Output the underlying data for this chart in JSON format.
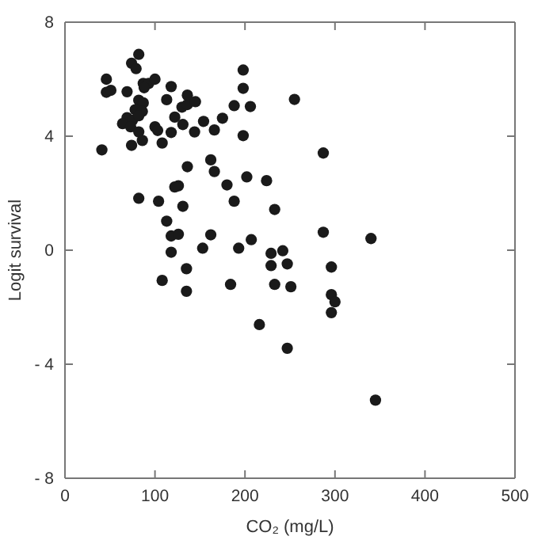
{
  "chart_data": {
    "type": "scatter",
    "xlabel": "CO₂ (mg/L)",
    "ylabel": "Logit survival",
    "xlim": [
      0,
      500
    ],
    "ylim": [
      -8,
      8
    ],
    "xticks": [
      0,
      100,
      200,
      300,
      400,
      500
    ],
    "yticks": [
      {
        "value": -8,
        "label": "- 8"
      },
      {
        "value": -4,
        "label": "- 4"
      },
      0,
      4,
      8
    ],
    "grid": false,
    "marker": "circle",
    "series": [
      {
        "color": "#1a1a1a",
        "x": [
          82,
          74,
          79,
          46,
          46,
          51,
          69,
          87,
          93,
          100,
          88,
          118,
          136,
          113,
          82,
          87,
          130,
          136,
          145,
          78,
          86,
          69,
          75,
          82,
          122,
          154,
          175,
          188,
          198,
          198,
          206,
          255,
          64,
          73,
          100,
          103,
          131,
          82,
          118,
          144,
          166,
          198,
          86,
          74,
          108,
          41,
          162,
          166,
          136,
          126,
          122,
          180,
          202,
          224,
          82,
          104,
          131,
          188,
          233,
          113,
          118,
          126,
          162,
          207,
          118,
          153,
          193,
          229,
          242,
          287,
          340,
          287,
          229,
          247,
          296,
          135,
          108,
          184,
          233,
          251,
          135,
          296,
          300,
          296,
          216,
          247,
          345
        ],
        "values": [
          6.87,
          6.56,
          6.37,
          6.0,
          5.54,
          5.61,
          5.56,
          5.85,
          5.85,
          6.0,
          5.7,
          5.74,
          5.44,
          5.28,
          5.26,
          5.17,
          5.02,
          5.11,
          5.21,
          4.93,
          4.87,
          4.65,
          4.56,
          4.72,
          4.67,
          4.52,
          4.63,
          5.07,
          6.32,
          5.68,
          5.04,
          5.29,
          4.44,
          4.33,
          4.33,
          4.2,
          4.41,
          4.15,
          4.13,
          4.15,
          4.22,
          4.02,
          3.85,
          3.68,
          3.76,
          3.52,
          3.17,
          2.76,
          2.93,
          2.26,
          2.22,
          2.29,
          2.57,
          2.44,
          1.82,
          1.72,
          1.54,
          1.72,
          1.43,
          1.02,
          0.5,
          0.56,
          0.54,
          0.37,
          -0.07,
          0.07,
          0.07,
          -0.11,
          -0.02,
          3.41,
          0.41,
          0.63,
          -0.54,
          -0.48,
          -0.59,
          -0.65,
          -1.06,
          -1.2,
          -1.2,
          -1.28,
          -1.44,
          -1.56,
          -1.81,
          -2.19,
          -2.61,
          -3.44,
          -5.26
        ]
      }
    ]
  }
}
